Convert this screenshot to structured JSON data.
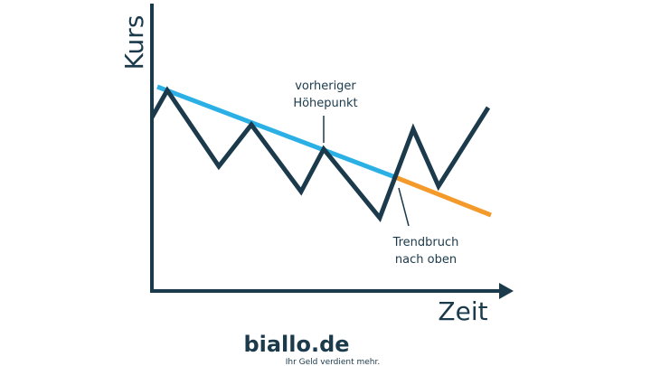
{
  "axes": {
    "y_label": "Kurs",
    "x_label": "Zeit"
  },
  "annotations": [
    {
      "lines": [
        "vorheriger",
        "Höhepunkt"
      ]
    },
    {
      "lines": [
        "Trendbruch",
        "nach oben"
      ]
    }
  ],
  "logo": {
    "name": "biallo.de",
    "tagline": "Ihr Geld verdient mehr."
  }
}
